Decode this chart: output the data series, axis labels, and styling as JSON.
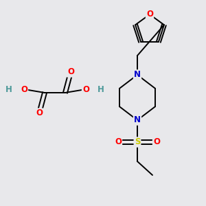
{
  "bg_color": "#e8e8eb",
  "figsize": [
    3.0,
    3.0
  ],
  "dpi": 100,
  "atom_colors": {
    "C": "#000000",
    "N": "#0000cc",
    "O": "#ff0000",
    "S": "#cccc00",
    "H": "#4d9999"
  },
  "bond_color": "#000000",
  "bond_width": 1.4,
  "font_size": 8.5
}
